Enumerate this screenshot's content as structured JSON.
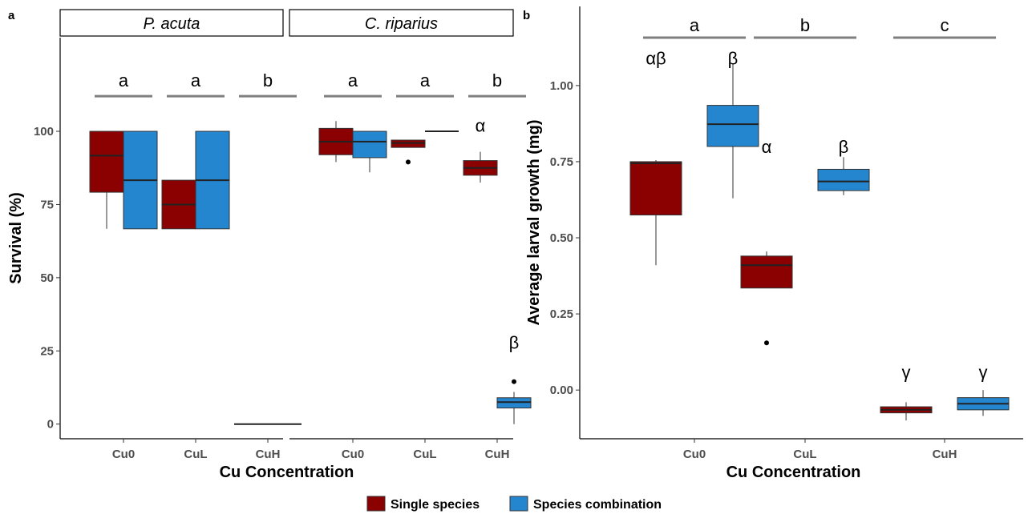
{
  "colors": {
    "single": "#8b0000",
    "combo": "#2586d0",
    "siglines": "#7f7f7f"
  },
  "legend": {
    "items": [
      {
        "label": "Single species",
        "color": "#8b0000"
      },
      {
        "label": "Species combination",
        "color": "#2586d0"
      }
    ]
  },
  "chart_data": [
    {
      "panel_label": "a",
      "type": "box",
      "ylabel": "Survival (%)",
      "xlabel": "Cu Concentration",
      "ylim": [
        -5,
        132
      ],
      "yticks": [
        0,
        25,
        50,
        75,
        100
      ],
      "categories": [
        "Cu0",
        "CuL",
        "CuH"
      ],
      "facets": [
        {
          "title": "P. acuta",
          "letters": [
            "a",
            "a",
            "b"
          ],
          "boxes": [
            {
              "category": "Cu0",
              "group": "Single species",
              "min": 66.7,
              "q1": 79.2,
              "median": 91.7,
              "q3": 100,
              "max": 100,
              "outliers": []
            },
            {
              "category": "Cu0",
              "group": "Species combination",
              "min": 66.7,
              "q1": 66.7,
              "median": 83.3,
              "q3": 100,
              "max": 100,
              "outliers": []
            },
            {
              "category": "CuL",
              "group": "Single species",
              "min": 66.7,
              "q1": 66.7,
              "median": 75,
              "q3": 83.3,
              "max": 83.3,
              "outliers": []
            },
            {
              "category": "CuL",
              "group": "Species combination",
              "min": 66.7,
              "q1": 66.7,
              "median": 83.3,
              "q3": 100,
              "max": 100,
              "outliers": []
            },
            {
              "category": "CuH",
              "group": "Single species",
              "min": 0,
              "q1": 0,
              "median": 0,
              "q3": 0,
              "max": 0,
              "outliers": []
            },
            {
              "category": "CuH",
              "group": "Species combination",
              "min": 0,
              "q1": 0,
              "median": 0,
              "q3": 0,
              "max": 0,
              "outliers": []
            }
          ],
          "box_symbols": []
        },
        {
          "title": "C. riparius",
          "letters": [
            "a",
            "a",
            "b"
          ],
          "boxes": [
            {
              "category": "Cu0",
              "group": "Single species",
              "min": 89.5,
              "q1": 92,
              "median": 96.5,
              "q3": 101,
              "max": 103.5,
              "outliers": []
            },
            {
              "category": "Cu0",
              "group": "Species combination",
              "min": 86,
              "q1": 91,
              "median": 96.5,
              "q3": 100,
              "max": 100,
              "outliers": []
            },
            {
              "category": "CuL",
              "group": "Single species",
              "min": 94.5,
              "q1": 94.5,
              "median": 96,
              "q3": 97,
              "max": 97,
              "outliers": [
                89.5
              ]
            },
            {
              "category": "CuL",
              "group": "Species combination",
              "min": 100,
              "q1": 100,
              "median": 100,
              "q3": 100,
              "max": 100,
              "outliers": []
            },
            {
              "category": "CuH",
              "group": "Single species",
              "min": 82.5,
              "q1": 85,
              "median": 87.5,
              "q3": 90,
              "max": 93,
              "outliers": []
            },
            {
              "category": "CuH",
              "group": "Species combination",
              "min": 0,
              "q1": 5.5,
              "median": 7.5,
              "q3": 9,
              "max": 11,
              "outliers": [
                14.5
              ]
            }
          ],
          "box_symbols": [
            {
              "category": "CuH",
              "group": "Single species",
              "symbol": "α",
              "y": 102
            },
            {
              "category": "CuH",
              "group": "Species combination",
              "symbol": "β",
              "y": 28
            }
          ]
        }
      ]
    },
    {
      "panel_label": "b",
      "type": "box",
      "ylabel": "Average larval growth (mg)",
      "xlabel": "Cu Concentration",
      "ylim": [
        -0.16,
        1.26
      ],
      "yticks": [
        0.0,
        0.25,
        0.5,
        0.75,
        1.0
      ],
      "ytick_labels": [
        "0.00",
        "0.25",
        "0.50",
        "0.75",
        "1.00"
      ],
      "categories": [
        "Cu0",
        "CuL",
        "CuH"
      ],
      "letters": [
        "a",
        "b",
        "c"
      ],
      "boxes": [
        {
          "category": "Cu0",
          "group": "Single species",
          "min": 0.41,
          "q1": 0.575,
          "median": 0.745,
          "q3": 0.75,
          "max": 0.755,
          "outliers": []
        },
        {
          "category": "Cu0",
          "group": "Species combination",
          "min": 0.63,
          "q1": 0.8,
          "median": 0.873,
          "q3": 0.935,
          "max": 1.07,
          "outliers": []
        },
        {
          "category": "CuL",
          "group": "Single species",
          "min": 0.335,
          "q1": 0.335,
          "median": 0.41,
          "q3": 0.44,
          "max": 0.455,
          "outliers": [
            0.155
          ]
        },
        {
          "category": "CuL",
          "group": "Species combination",
          "min": 0.64,
          "q1": 0.655,
          "median": 0.685,
          "q3": 0.725,
          "max": 0.765,
          "outliers": []
        },
        {
          "category": "CuH",
          "group": "Single species",
          "min": -0.1,
          "q1": -0.075,
          "median": -0.065,
          "q3": -0.055,
          "max": -0.04,
          "outliers": []
        },
        {
          "category": "CuH",
          "group": "Species combination",
          "min": -0.085,
          "q1": -0.065,
          "median": -0.045,
          "q3": -0.025,
          "max": 0.0,
          "outliers": []
        }
      ],
      "box_symbols": [
        {
          "category": "Cu0",
          "group": "Single species",
          "symbol": "αβ",
          "y": 1.09
        },
        {
          "category": "Cu0",
          "group": "Species combination",
          "symbol": "β",
          "y": 1.09
        },
        {
          "category": "CuL",
          "group": "Single species",
          "symbol": "α",
          "y": 0.8
        },
        {
          "category": "CuL",
          "group": "Species combination",
          "symbol": "β",
          "y": 0.8
        },
        {
          "category": "CuH",
          "group": "Single species",
          "symbol": "γ",
          "y": 0.06
        },
        {
          "category": "CuH",
          "group": "Species combination",
          "symbol": "γ",
          "y": 0.06
        }
      ]
    }
  ]
}
